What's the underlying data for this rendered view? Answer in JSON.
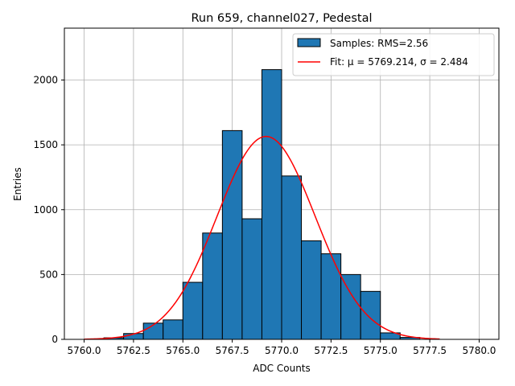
{
  "chart_data": {
    "type": "bar",
    "title": "Run 659, channel027, Pedestal",
    "xlabel": "ADC Counts",
    "ylabel": "Entries",
    "xlim": [
      5759.0,
      5781.0
    ],
    "ylim": [
      0,
      2400
    ],
    "grid": true,
    "legend_position": "top-right",
    "x_ticks": [
      "5760.0",
      "5762.5",
      "5765.0",
      "5767.5",
      "5770.0",
      "5772.5",
      "5775.0",
      "5777.5",
      "5780.0"
    ],
    "x_tick_values": [
      5760.0,
      5762.5,
      5765.0,
      5767.5,
      5770.0,
      5772.5,
      5775.0,
      5777.5,
      5780.0
    ],
    "y_ticks": [
      "0",
      "500",
      "1000",
      "1500",
      "2000"
    ],
    "y_tick_values": [
      0,
      500,
      1000,
      1500,
      2000
    ],
    "histogram": {
      "name": "Samples: RMS=2.56",
      "color": "#1f77b4",
      "edge_color": "#000000",
      "bin_edges": [
        5761,
        5762,
        5763,
        5764,
        5765,
        5766,
        5767,
        5768,
        5769,
        5770,
        5771,
        5772,
        5773,
        5774,
        5775,
        5776,
        5777
      ],
      "counts": [
        12,
        45,
        125,
        150,
        440,
        820,
        1610,
        930,
        2080,
        1260,
        760,
        660,
        500,
        370,
        50,
        15
      ]
    },
    "fit": {
      "name": "Fit: μ = 5769.214, σ = 2.484",
      "color": "#ff0000",
      "mu": 5769.214,
      "sigma": 2.484,
      "amplitude": 1565,
      "x_range": [
        5760.0,
        5778.0
      ]
    }
  }
}
